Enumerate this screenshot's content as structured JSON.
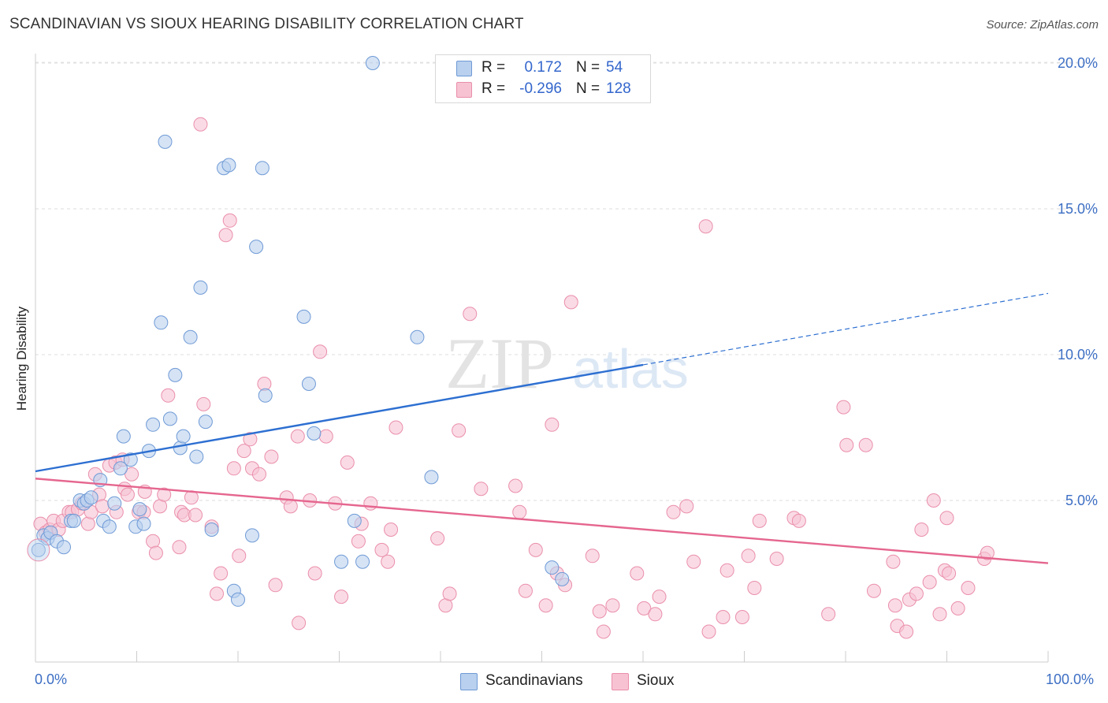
{
  "header": {
    "title": "SCANDINAVIAN VS SIOUX HEARING DISABILITY CORRELATION CHART",
    "source": "Source: ZipAtlas.com"
  },
  "watermark": {
    "zip": "ZIP",
    "atlas": "atlas"
  },
  "legend": {
    "r_label": "R =",
    "n_label": "N =",
    "rows": [
      {
        "name": "Scandinavians",
        "r": "0.172",
        "n": "54"
      },
      {
        "name": "Sioux",
        "r": "-0.296",
        "n": "128"
      }
    ]
  },
  "colors": {
    "blue_fill": "#b9d0ee",
    "blue_stroke": "#6f9ad6",
    "blue_line": "#2d6fd1",
    "pink_fill": "#f7c3d3",
    "pink_stroke": "#ea8fab",
    "pink_line": "#e5668f",
    "tick_text": "#3d6fc4"
  },
  "chart_data": {
    "type": "scatter",
    "title": "SCANDINAVIAN VS SIOUX HEARING DISABILITY CORRELATION CHART",
    "xlabel": "",
    "ylabel": "Hearing Disability",
    "xlim": [
      0,
      100
    ],
    "ylim": [
      0,
      20.5
    ],
    "x_tick_labels": [
      "0.0%",
      "100.0%"
    ],
    "y_ticks": [
      5,
      10,
      15,
      20
    ],
    "y_tick_labels": [
      "5.0%",
      "10.0%",
      "15.0%",
      "20.0%"
    ],
    "grid": true,
    "legend_position": "top-center",
    "series": [
      {
        "name": "Scandinavians",
        "r": 0.172,
        "n": 54,
        "trend": {
          "x0": 0,
          "y0": 6.0,
          "x1": 60,
          "y1": 9.65,
          "dashed_to_x": 100,
          "dashed_to_y": 12.1
        },
        "points": [
          [
            0.3,
            3.3
          ],
          [
            0.8,
            3.8
          ],
          [
            1.2,
            3.7
          ],
          [
            1.5,
            3.9
          ],
          [
            2.1,
            3.6
          ],
          [
            2.8,
            3.4
          ],
          [
            3.5,
            4.3
          ],
          [
            3.8,
            4.3
          ],
          [
            4.4,
            5.0
          ],
          [
            4.8,
            4.9
          ],
          [
            5.1,
            5.0
          ],
          [
            5.5,
            5.1
          ],
          [
            6.4,
            5.7
          ],
          [
            6.7,
            4.3
          ],
          [
            7.3,
            4.1
          ],
          [
            7.8,
            4.9
          ],
          [
            8.4,
            6.1
          ],
          [
            8.7,
            7.2
          ],
          [
            9.4,
            6.4
          ],
          [
            9.9,
            4.1
          ],
          [
            10.3,
            4.7
          ],
          [
            10.7,
            4.2
          ],
          [
            11.2,
            6.7
          ],
          [
            11.6,
            7.6
          ],
          [
            12.4,
            11.1
          ],
          [
            12.8,
            17.3
          ],
          [
            13.3,
            7.8
          ],
          [
            13.8,
            9.3
          ],
          [
            14.3,
            6.8
          ],
          [
            14.6,
            7.2
          ],
          [
            15.3,
            10.6
          ],
          [
            15.9,
            6.5
          ],
          [
            16.3,
            12.3
          ],
          [
            16.8,
            7.7
          ],
          [
            17.4,
            4.0
          ],
          [
            18.6,
            16.4
          ],
          [
            19.1,
            16.5
          ],
          [
            19.6,
            1.9
          ],
          [
            20.0,
            1.6
          ],
          [
            21.4,
            3.8
          ],
          [
            21.8,
            13.7
          ],
          [
            22.4,
            16.4
          ],
          [
            22.7,
            8.6
          ],
          [
            26.5,
            11.3
          ],
          [
            27.0,
            9.0
          ],
          [
            27.5,
            7.3
          ],
          [
            30.2,
            2.9
          ],
          [
            31.5,
            4.3
          ],
          [
            32.3,
            2.9
          ],
          [
            33.3,
            20.0
          ],
          [
            37.7,
            10.6
          ],
          [
            39.1,
            5.8
          ],
          [
            51.0,
            2.7
          ],
          [
            52.0,
            2.3
          ]
        ]
      },
      {
        "name": "Sioux",
        "r": -0.296,
        "n": 128,
        "trend": {
          "x0": 0,
          "y0": 5.75,
          "x1": 100,
          "y1": 2.85
        },
        "points": [
          [
            0.5,
            4.2
          ],
          [
            1.0,
            3.9
          ],
          [
            1.4,
            4.0
          ],
          [
            1.8,
            4.3
          ],
          [
            2.3,
            4.0
          ],
          [
            2.7,
            4.3
          ],
          [
            3.3,
            4.6
          ],
          [
            3.6,
            4.6
          ],
          [
            4.2,
            4.7
          ],
          [
            4.6,
            4.9
          ],
          [
            5.2,
            4.2
          ],
          [
            5.5,
            4.6
          ],
          [
            5.9,
            5.9
          ],
          [
            6.3,
            5.2
          ],
          [
            6.6,
            4.8
          ],
          [
            7.3,
            6.2
          ],
          [
            7.9,
            6.3
          ],
          [
            8.0,
            4.6
          ],
          [
            8.6,
            6.4
          ],
          [
            8.8,
            5.4
          ],
          [
            9.1,
            5.2
          ],
          [
            9.5,
            5.9
          ],
          [
            10.2,
            4.6
          ],
          [
            10.7,
            4.6
          ],
          [
            10.8,
            5.3
          ],
          [
            11.6,
            3.6
          ],
          [
            11.9,
            3.2
          ],
          [
            12.3,
            4.8
          ],
          [
            12.7,
            5.2
          ],
          [
            13.1,
            8.6
          ],
          [
            14.2,
            3.4
          ],
          [
            14.4,
            4.6
          ],
          [
            14.7,
            4.5
          ],
          [
            15.4,
            5.1
          ],
          [
            15.8,
            4.5
          ],
          [
            16.3,
            17.9
          ],
          [
            16.6,
            8.3
          ],
          [
            17.4,
            4.1
          ],
          [
            17.9,
            1.8
          ],
          [
            18.3,
            2.5
          ],
          [
            18.8,
            14.1
          ],
          [
            19.2,
            14.6
          ],
          [
            19.6,
            6.1
          ],
          [
            20.1,
            3.1
          ],
          [
            20.6,
            6.7
          ],
          [
            21.2,
            7.1
          ],
          [
            21.4,
            6.1
          ],
          [
            22.1,
            5.9
          ],
          [
            22.6,
            9.0
          ],
          [
            23.3,
            6.5
          ],
          [
            23.7,
            2.1
          ],
          [
            24.8,
            5.1
          ],
          [
            25.2,
            4.8
          ],
          [
            25.9,
            7.2
          ],
          [
            26.0,
            0.8
          ],
          [
            27.1,
            5.0
          ],
          [
            27.6,
            2.5
          ],
          [
            28.1,
            10.1
          ],
          [
            28.7,
            7.2
          ],
          [
            29.6,
            4.9
          ],
          [
            30.2,
            1.7
          ],
          [
            30.8,
            6.3
          ],
          [
            31.9,
            3.6
          ],
          [
            32.2,
            4.2
          ],
          [
            33.1,
            4.9
          ],
          [
            34.2,
            3.3
          ],
          [
            34.8,
            2.9
          ],
          [
            35.1,
            4.0
          ],
          [
            35.6,
            7.5
          ],
          [
            39.7,
            3.7
          ],
          [
            40.5,
            1.4
          ],
          [
            40.9,
            1.8
          ],
          [
            41.8,
            7.4
          ],
          [
            42.9,
            11.4
          ],
          [
            44.0,
            5.4
          ],
          [
            47.4,
            5.5
          ],
          [
            47.8,
            4.6
          ],
          [
            48.4,
            1.9
          ],
          [
            49.4,
            3.3
          ],
          [
            50.4,
            1.4
          ],
          [
            51.0,
            7.6
          ],
          [
            51.5,
            2.5
          ],
          [
            52.3,
            2.1
          ],
          [
            52.9,
            11.8
          ],
          [
            55.0,
            3.1
          ],
          [
            55.7,
            1.2
          ],
          [
            56.1,
            0.5
          ],
          [
            57.0,
            1.4
          ],
          [
            59.4,
            2.5
          ],
          [
            60.1,
            1.3
          ],
          [
            61.2,
            1.1
          ],
          [
            61.6,
            1.7
          ],
          [
            63.0,
            4.6
          ],
          [
            64.3,
            4.8
          ],
          [
            65.0,
            2.9
          ],
          [
            66.2,
            14.4
          ],
          [
            66.5,
            0.5
          ],
          [
            67.9,
            1.0
          ],
          [
            68.3,
            2.6
          ],
          [
            69.8,
            1.0
          ],
          [
            70.4,
            3.1
          ],
          [
            71.0,
            2.0
          ],
          [
            71.5,
            4.3
          ],
          [
            73.2,
            3.0
          ],
          [
            74.9,
            4.4
          ],
          [
            75.4,
            4.3
          ],
          [
            78.3,
            1.1
          ],
          [
            79.8,
            8.2
          ],
          [
            80.1,
            6.9
          ],
          [
            82.0,
            6.9
          ],
          [
            82.8,
            1.9
          ],
          [
            84.7,
            2.9
          ],
          [
            84.9,
            1.4
          ],
          [
            85.1,
            0.7
          ],
          [
            86.0,
            0.5
          ],
          [
            86.3,
            1.6
          ],
          [
            87.0,
            1.8
          ],
          [
            87.5,
            4.0
          ],
          [
            88.3,
            2.2
          ],
          [
            88.7,
            5.0
          ],
          [
            89.3,
            1.1
          ],
          [
            89.8,
            2.6
          ],
          [
            90.0,
            4.4
          ],
          [
            90.2,
            2.5
          ],
          [
            91.1,
            1.3
          ],
          [
            92.1,
            2.0
          ],
          [
            93.7,
            3.0
          ],
          [
            94.0,
            3.2
          ]
        ]
      }
    ]
  }
}
